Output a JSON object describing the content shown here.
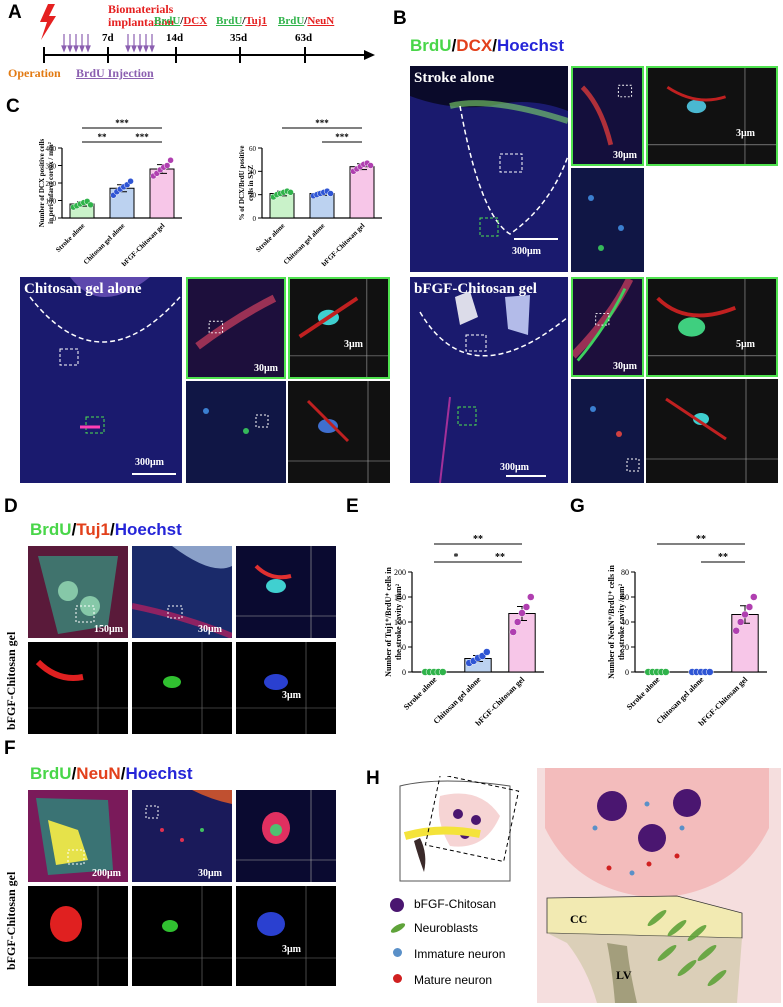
{
  "panels": {
    "A": "A",
    "B": "B",
    "C": "C",
    "D": "D",
    "E": "E",
    "F": "F",
    "G": "G",
    "H": "H"
  },
  "timeline": {
    "operation": "Operation",
    "implant": [
      "Biomaterials",
      "implantation"
    ],
    "brdu_injection": "BrdU Injection",
    "days": [
      "7d",
      "14d",
      "35d",
      "63d"
    ],
    "markers": [
      {
        "a": "BrdU",
        "b": "DCX"
      },
      {
        "a": "BrdU",
        "b": "Tuj1"
      },
      {
        "a": "BrdU",
        "b": "NeuN"
      }
    ]
  },
  "stains": {
    "B": {
      "a": "BrdU",
      "b": "DCX",
      "c": "Hoechst"
    },
    "D": {
      "a": "BrdU",
      "b": "Tuj1",
      "c": "Hoechst"
    },
    "F": {
      "a": "BrdU",
      "b": "NeuN",
      "c": "Hoechst"
    }
  },
  "micro_titles": {
    "stroke_alone": "Stroke alone",
    "chitosan_alone": "Chitosan gel alone",
    "bfgf_chitosan": "bFGF-Chitosan gel"
  },
  "scales": {
    "s300": "300μm",
    "s30": "30μm",
    "s3": "3μm",
    "s5": "5μm",
    "s150": "150μm",
    "s200": "200μm"
  },
  "side_labels": {
    "D": "bFGF-Chitosan gel",
    "F": "bFGF-Chitosan gel"
  },
  "chart_data": [
    {
      "type": "bar",
      "id": "C1",
      "ylabel": "Number of DCX positive cells in peri-infarct cortex / mm²",
      "categories": [
        "Stroke alone",
        "Chitosan gel alone",
        "bFGF-Chitosan gel"
      ],
      "values": [
        80,
        170,
        280
      ],
      "errors": [
        12,
        20,
        25
      ],
      "ylim": [
        0,
        400
      ],
      "yticks": [
        0,
        100,
        200,
        300,
        400
      ],
      "points": [
        [
          62,
          70,
          80,
          88,
          95,
          75
        ],
        [
          130,
          150,
          165,
          178,
          190,
          210
        ],
        [
          240,
          255,
          275,
          290,
          300,
          330
        ]
      ],
      "significance": [
        {
          "from": 0,
          "to": 1,
          "label": "**"
        },
        {
          "from": 1,
          "to": 2,
          "label": "***"
        },
        {
          "from": 0,
          "to": 2,
          "label": "***"
        }
      ],
      "colors": [
        "#c9f2c9",
        "#bcd2f0",
        "#f7c6e8"
      ],
      "point_colors": [
        "#2fb34a",
        "#2f55d4",
        "#b03fb0"
      ]
    },
    {
      "type": "bar",
      "id": "C2",
      "ylabel": "% of DCX/BrdU positive cells in SVZ",
      "categories": [
        "Stroke alone",
        "Chitosan gel alone",
        "bFGF-Chitosan gel"
      ],
      "values": [
        21,
        21,
        44
      ],
      "errors": [
        2,
        1.5,
        2.5
      ],
      "ylim": [
        0,
        60
      ],
      "yticks": [
        0,
        20,
        40,
        60
      ],
      "points": [
        [
          18,
          20,
          21,
          22,
          23,
          22
        ],
        [
          19,
          20,
          21,
          22,
          23,
          21
        ],
        [
          40,
          42,
          44,
          46,
          47,
          45
        ]
      ],
      "significance": [
        {
          "from": 1,
          "to": 2,
          "label": "***"
        },
        {
          "from": 0,
          "to": 2,
          "label": "***"
        }
      ],
      "colors": [
        "#c9f2c9",
        "#bcd2f0",
        "#f7c6e8"
      ],
      "point_colors": [
        "#2fb34a",
        "#2f55d4",
        "#b03fb0"
      ]
    },
    {
      "type": "bar",
      "id": "E",
      "ylabel": "Number of Tuj1⁺/BrdU⁺ cells in the stroke cavity /mm²",
      "categories": [
        "Stroke alone",
        "Chitosan gel alone",
        "bFGF-Chitosan gel"
      ],
      "values": [
        0,
        27,
        117
      ],
      "errors": [
        0,
        6,
        14
      ],
      "ylim": [
        0,
        200
      ],
      "yticks": [
        0,
        50,
        100,
        150,
        200
      ],
      "points": [
        [
          0,
          0,
          0,
          0,
          0
        ],
        [
          18,
          22,
          28,
          32,
          40
        ],
        [
          80,
          100,
          118,
          130,
          150
        ]
      ],
      "significance": [
        {
          "from": 0,
          "to": 1,
          "label": "*"
        },
        {
          "from": 1,
          "to": 2,
          "label": "**"
        },
        {
          "from": 0,
          "to": 2,
          "label": "**"
        }
      ],
      "colors": [
        "#c9f2c9",
        "#bcd2f0",
        "#f7c6e8"
      ],
      "point_colors": [
        "#2fb34a",
        "#2f55d4",
        "#b03fb0"
      ]
    },
    {
      "type": "bar",
      "id": "G",
      "ylabel": "Number of NeuN⁺/BrdU⁺ cells in the stroke cavity /mm²",
      "categories": [
        "Stroke alone",
        "Chitosan gel alone",
        "bFGF-Chitosan gel"
      ],
      "values": [
        0,
        0,
        46
      ],
      "errors": [
        0,
        0,
        7
      ],
      "ylim": [
        0,
        80
      ],
      "yticks": [
        0,
        20,
        40,
        60,
        80
      ],
      "points": [
        [
          0,
          0,
          0,
          0,
          0
        ],
        [
          0,
          0,
          0,
          0,
          0
        ],
        [
          33,
          40,
          46,
          52,
          60
        ]
      ],
      "significance": [
        {
          "from": 1,
          "to": 2,
          "label": "**"
        },
        {
          "from": 0,
          "to": 2,
          "label": "**"
        }
      ],
      "colors": [
        "#c9f2c9",
        "#bcd2f0",
        "#f7c6e8"
      ],
      "point_colors": [
        "#2fb34a",
        "#2f55d4",
        "#b03fb0"
      ]
    }
  ],
  "legend_H": [
    {
      "label": "bFGF-Chitosan",
      "icon": "bfgf-chitosan-icon"
    },
    {
      "label": "Neuroblasts",
      "icon": "neuroblast-icon"
    },
    {
      "label": "Immature neuron",
      "icon": "immature-neuron-icon"
    },
    {
      "label": "Mature neuron",
      "icon": "mature-neuron-icon"
    }
  ],
  "schematic": {
    "cc": "CC",
    "lv": "LV"
  }
}
